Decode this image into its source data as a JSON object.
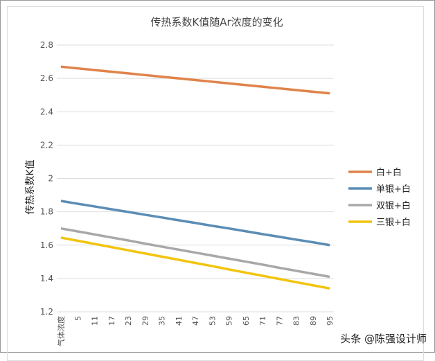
{
  "chart_data": {
    "type": "line",
    "title": "传热系数K值随Ar浓度的变化",
    "ylabel": "传热系数K值",
    "xlabel": "",
    "ylim": [
      1.2,
      2.8
    ],
    "yticks": [
      "1.2",
      "1.4",
      "1.6",
      "1.8",
      "2",
      "2.2",
      "2.4",
      "2.6",
      "2.8"
    ],
    "grid": true,
    "legend_position": "right",
    "categories": [
      "气体浓度",
      "5",
      "11",
      "17",
      "23",
      "29",
      "35",
      "41",
      "47",
      "53",
      "59",
      "65",
      "71",
      "77",
      "83",
      "89",
      "95"
    ],
    "series": [
      {
        "name": "白+白",
        "color": "#E0834A",
        "values": [
          2.67,
          2.66,
          2.65,
          2.64,
          2.63,
          2.62,
          2.61,
          2.6,
          2.59,
          2.58,
          2.57,
          2.56,
          2.55,
          2.54,
          2.53,
          2.52,
          2.51
        ]
      },
      {
        "name": "单银+白",
        "color": "#5B8DB5",
        "values": [
          1.865,
          1.848,
          1.832,
          1.815,
          1.799,
          1.782,
          1.766,
          1.749,
          1.733,
          1.716,
          1.7,
          1.683,
          1.666,
          1.65,
          1.633,
          1.617,
          1.6
        ]
      },
      {
        "name": "双银+白",
        "color": "#A8A8A8",
        "values": [
          1.7,
          1.682,
          1.664,
          1.646,
          1.628,
          1.609,
          1.591,
          1.573,
          1.555,
          1.537,
          1.519,
          1.501,
          1.483,
          1.464,
          1.446,
          1.428,
          1.41
        ]
      },
      {
        "name": "三银+白",
        "color": "#F2C40F",
        "values": [
          1.645,
          1.626,
          1.607,
          1.588,
          1.569,
          1.55,
          1.531,
          1.512,
          1.493,
          1.474,
          1.454,
          1.435,
          1.416,
          1.397,
          1.378,
          1.359,
          1.34
        ]
      }
    ]
  },
  "watermark": "头条 @陈强设计师"
}
